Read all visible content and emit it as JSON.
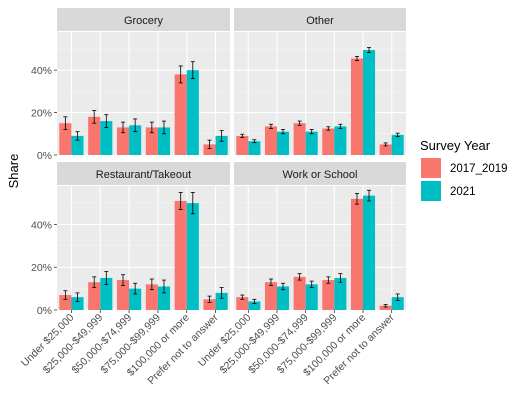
{
  "chart_data": {
    "type": "bar",
    "ylabel": "Share",
    "xlabel": "",
    "ylim": [
      0,
      0.58
    ],
    "yticks": [
      0,
      0.2,
      0.4
    ],
    "ytick_labels": [
      "0%",
      "20%",
      "40%"
    ],
    "categories": [
      "Under $25,000",
      "$25,000-$49,999",
      "$50,000-$74,999",
      "$75,000-$99,999",
      "$100,000 or more",
      "Prefer not to answer"
    ],
    "legend": {
      "title": "Survey Year",
      "placement": "right",
      "entries": [
        {
          "name": "2017_2019",
          "color": "#F8766D"
        },
        {
          "name": "2021",
          "color": "#00BFC4"
        }
      ]
    },
    "facets": [
      {
        "title": "Grocery",
        "series": [
          {
            "name": "2017_2019",
            "values": [
              0.15,
              0.18,
              0.13,
              0.13,
              0.38,
              0.05
            ],
            "errors": [
              0.03,
              0.03,
              0.025,
              0.025,
              0.04,
              0.02
            ]
          },
          {
            "name": "2021",
            "values": [
              0.09,
              0.16,
              0.14,
              0.13,
              0.4,
              0.09
            ],
            "errors": [
              0.02,
              0.03,
              0.03,
              0.03,
              0.04,
              0.025
            ]
          }
        ]
      },
      {
        "title": "Other",
        "series": [
          {
            "name": "2017_2019",
            "values": [
              0.09,
              0.135,
              0.15,
              0.125,
              0.455,
              0.05
            ],
            "errors": [
              0.008,
              0.01,
              0.01,
              0.008,
              0.01,
              0.007
            ]
          },
          {
            "name": "2021",
            "values": [
              0.065,
              0.11,
              0.11,
              0.135,
              0.495,
              0.095
            ],
            "errors": [
              0.007,
              0.01,
              0.01,
              0.01,
              0.012,
              0.008
            ]
          }
        ]
      },
      {
        "title": "Restaurant/Takeout",
        "series": [
          {
            "name": "2017_2019",
            "values": [
              0.07,
              0.13,
              0.14,
              0.12,
              0.51,
              0.05
            ],
            "errors": [
              0.02,
              0.025,
              0.025,
              0.025,
              0.04,
              0.015
            ]
          },
          {
            "name": "2021",
            "values": [
              0.06,
              0.15,
              0.1,
              0.11,
              0.5,
              0.08
            ],
            "errors": [
              0.02,
              0.03,
              0.025,
              0.03,
              0.05,
              0.025
            ]
          }
        ]
      },
      {
        "title": "Work or School",
        "series": [
          {
            "name": "2017_2019",
            "values": [
              0.06,
              0.13,
              0.155,
              0.14,
              0.52,
              0.02
            ],
            "errors": [
              0.01,
              0.015,
              0.015,
              0.015,
              0.025,
              0.006
            ]
          },
          {
            "name": "2021",
            "values": [
              0.04,
              0.11,
              0.12,
              0.15,
              0.535,
              0.06
            ],
            "errors": [
              0.01,
              0.015,
              0.015,
              0.02,
              0.025,
              0.015
            ]
          }
        ]
      }
    ]
  }
}
